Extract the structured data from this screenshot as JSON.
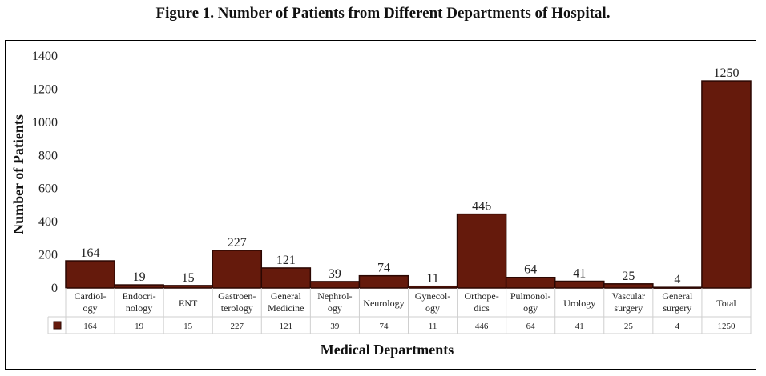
{
  "title": "Figure 1. Number of Patients from Different Departments of Hospital.",
  "chart_data": {
    "type": "bar",
    "title": "Figure 1. Number of Patients from Different Departments of Hospital.",
    "xlabel": "Medical Departments",
    "ylabel": "Number of Patients",
    "ylim": [
      0,
      1400
    ],
    "yticks": [
      0,
      200,
      400,
      600,
      800,
      1000,
      1200,
      1400
    ],
    "grid": false,
    "legend": "data-table",
    "color": "#651a0c",
    "categories": [
      [
        "Cardiol-",
        "ogy"
      ],
      [
        "Endocri-",
        "nology"
      ],
      [
        "ENT"
      ],
      [
        "Gastroen-",
        "terology"
      ],
      [
        "General",
        "Medicine"
      ],
      [
        "Nephrol-",
        "ogy"
      ],
      [
        "Neurology"
      ],
      [
        "Gynecol-",
        "ogy"
      ],
      [
        "Orthope-",
        "dics"
      ],
      [
        "Pulmonol-",
        "ogy"
      ],
      [
        "Urology"
      ],
      [
        "Vascular",
        "surgery"
      ],
      [
        "General",
        "surgery"
      ],
      [
        "Total"
      ]
    ],
    "values": [
      164,
      19,
      15,
      227,
      121,
      39,
      74,
      11,
      446,
      64,
      41,
      25,
      4,
      1250
    ],
    "data_labels": [
      "164",
      "19",
      "15",
      "227",
      "121",
      "39",
      "74",
      "11",
      "446",
      "64",
      "41",
      "25",
      "4",
      "1250"
    ]
  }
}
